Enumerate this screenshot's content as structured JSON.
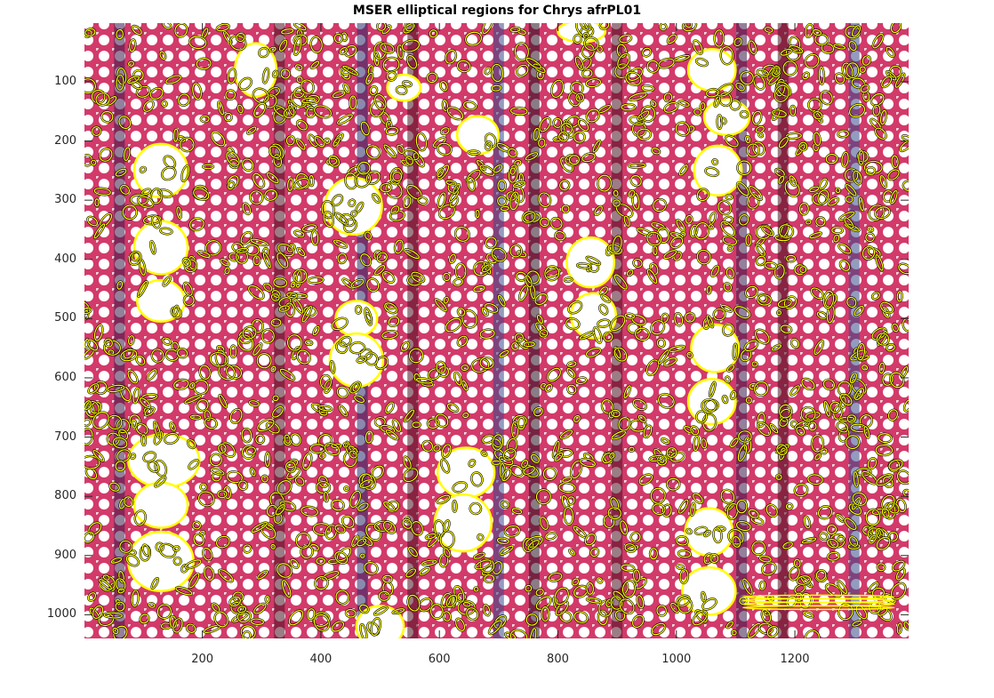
{
  "figure": {
    "title": "MSER elliptical regions for Chrys afrPL01"
  },
  "axes": {
    "x_ticks": [
      "200",
      "400",
      "600",
      "800",
      "1000",
      "1200"
    ],
    "y_ticks": [
      "100",
      "200",
      "300",
      "400",
      "500",
      "600",
      "700",
      "800",
      "900",
      "1000"
    ],
    "x_range": [
      1,
      1392
    ],
    "y_range": [
      1,
      1040
    ],
    "y_reversed": true
  },
  "image": {
    "description_colors": {
      "background": "#ffffff",
      "tissue_red": "#c8285a",
      "tissue_dark": "#4a1020",
      "tissue_blue": "#3a4a8a",
      "ellipse_stroke": "#ffff00",
      "ellipse_outline": "#000000"
    }
  }
}
